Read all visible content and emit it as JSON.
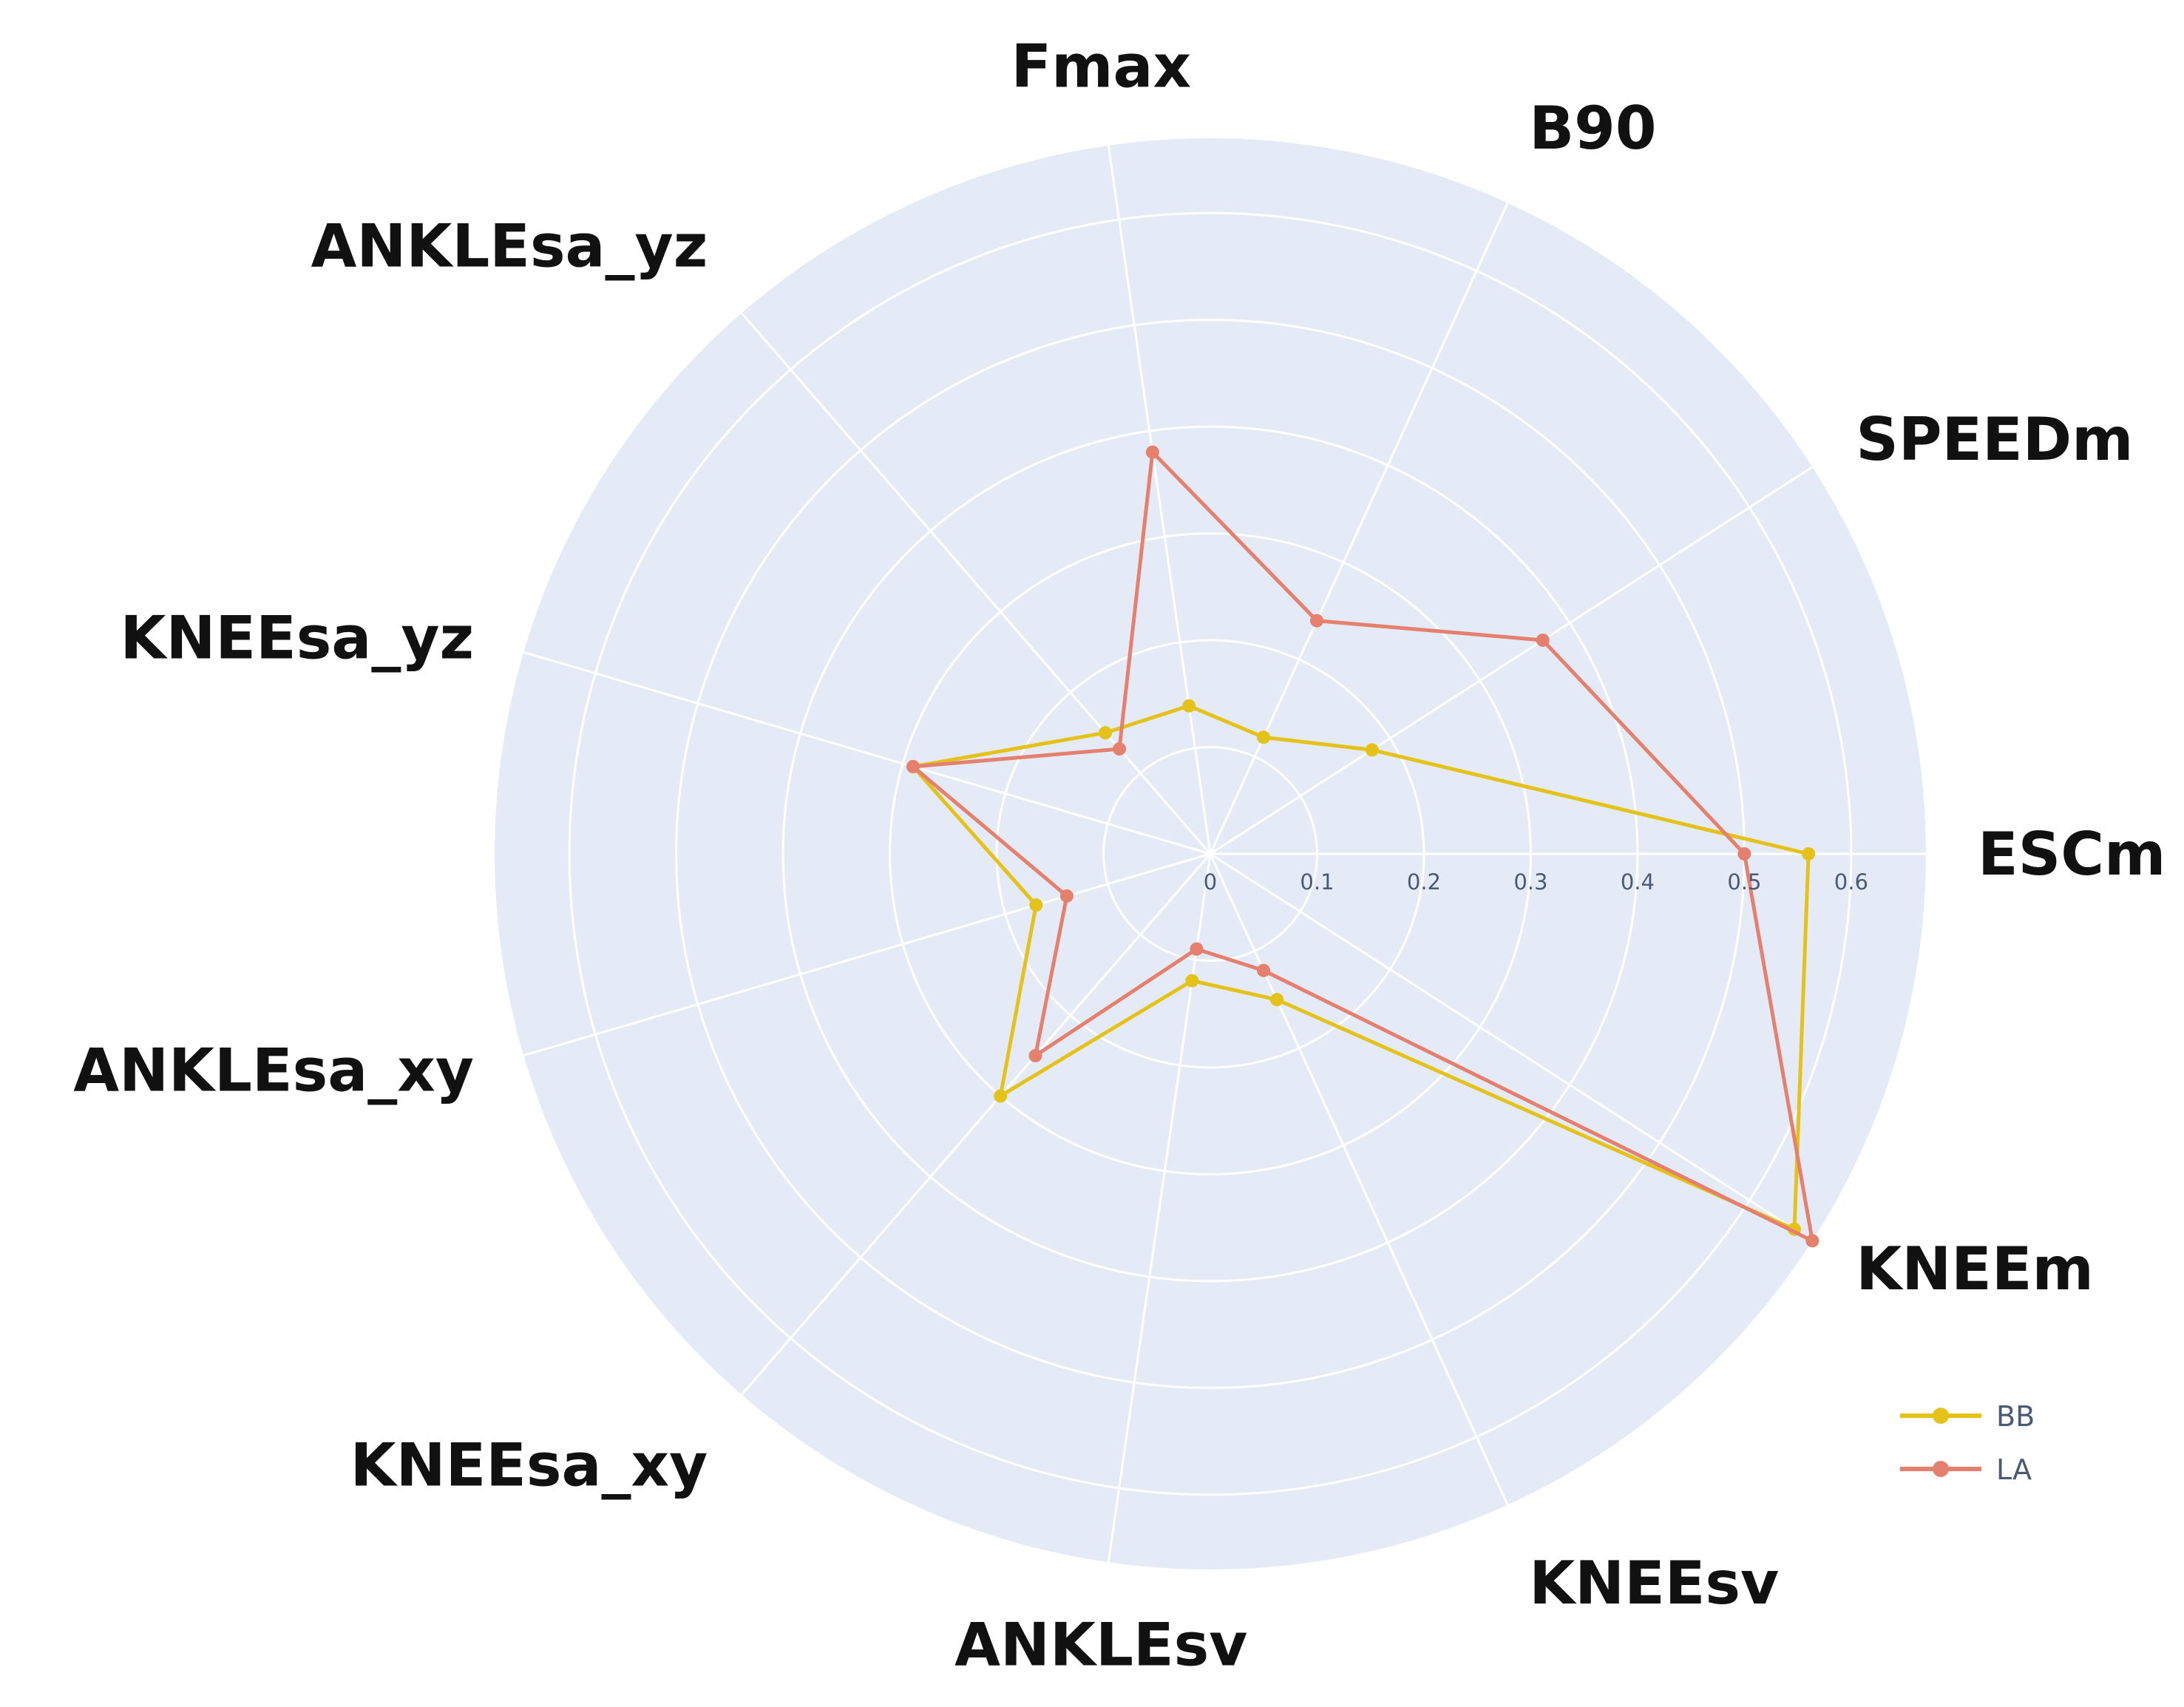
{
  "chart_data": {
    "type": "radar",
    "axes": [
      "ESCm",
      "KNEEm",
      "KNEEsv",
      "ANKLEsv",
      "KNEEsa_xy",
      "ANKLEsa_xy",
      "KNEEsa_yz",
      "ANKLEsa_yz",
      "Fmax",
      "B90",
      "SPEEDm"
    ],
    "radial_ticks": [
      "0",
      "0.1",
      "0.2",
      "0.3",
      "0.4",
      "0.5",
      "0.6"
    ],
    "radial_range": [
      0,
      0.67
    ],
    "grid": true,
    "legend_position": "bottom-right",
    "series": [
      {
        "name": "BB",
        "color": "#e5c21a",
        "values": [
          0.56,
          0.65,
          0.15,
          0.12,
          0.3,
          0.17,
          0.29,
          0.15,
          0.14,
          0.12,
          0.18
        ]
      },
      {
        "name": "LA",
        "color": "#e57f6e",
        "values": [
          0.5,
          0.67,
          0.12,
          0.09,
          0.25,
          0.14,
          0.29,
          0.13,
          0.38,
          0.24,
          0.37
        ]
      }
    ]
  }
}
